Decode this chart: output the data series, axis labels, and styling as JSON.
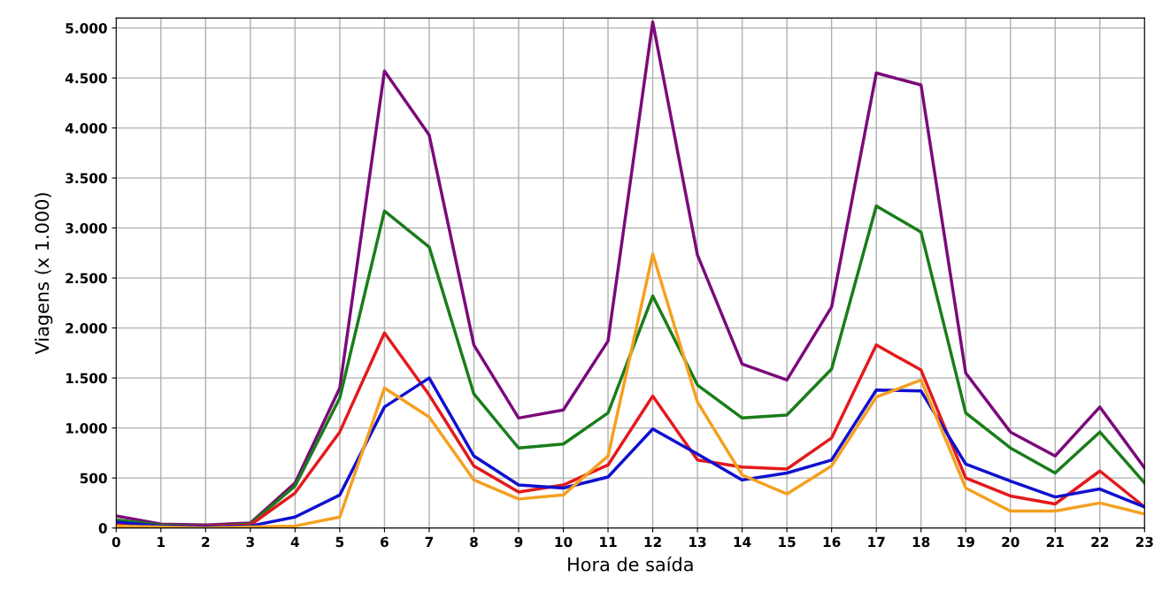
{
  "chart_data": {
    "type": "line",
    "xlabel": "Hora de saída",
    "ylabel": "Viagens (x 1.000)",
    "x": [
      0,
      1,
      2,
      3,
      4,
      5,
      6,
      7,
      8,
      9,
      10,
      11,
      12,
      13,
      14,
      15,
      16,
      17,
      18,
      19,
      20,
      21,
      22,
      23
    ],
    "xlim": [
      0,
      23
    ],
    "xticks": [
      0,
      1,
      2,
      3,
      4,
      5,
      6,
      7,
      8,
      9,
      10,
      11,
      12,
      13,
      14,
      15,
      16,
      17,
      18,
      19,
      20,
      21,
      22,
      23
    ],
    "ylim": [
      0,
      5100
    ],
    "yticks": [
      0,
      500,
      {
        "value": 1000,
        "label": "1.000"
      },
      {
        "value": 1500,
        "label": "1.500"
      },
      {
        "value": 2000,
        "label": "2.000"
      },
      {
        "value": 2500,
        "label": "2.500"
      },
      {
        "value": 3000,
        "label": "3.000"
      },
      {
        "value": 3500,
        "label": "3.500"
      },
      {
        "value": 4000,
        "label": "4.000"
      },
      {
        "value": 4500,
        "label": "4.500"
      },
      {
        "value": 5000,
        "label": "5.000"
      }
    ],
    "grid": true,
    "line_style": "solid",
    "series": [
      {
        "color": "#7b0a7b",
        "values": [
          120,
          40,
          30,
          50,
          450,
          1400,
          4570,
          3930,
          1830,
          1100,
          1180,
          1870,
          5060,
          2730,
          1640,
          1480,
          2210,
          4550,
          4430,
          1550,
          960,
          720,
          1210,
          600
        ]
      },
      {
        "color": "#1a7d1a",
        "values": [
          80,
          30,
          20,
          40,
          420,
          1300,
          3170,
          2810,
          1340,
          800,
          840,
          1150,
          2320,
          1430,
          1100,
          1130,
          1590,
          3220,
          2960,
          1150,
          800,
          550,
          960,
          450
        ]
      },
      {
        "color": "#e31a1c",
        "values": [
          40,
          20,
          20,
          30,
          350,
          960,
          1950,
          1330,
          620,
          360,
          430,
          630,
          1320,
          680,
          610,
          590,
          900,
          1830,
          1580,
          500,
          320,
          240,
          570,
          210
        ]
      },
      {
        "color": "#1010d0",
        "values": [
          60,
          20,
          10,
          20,
          110,
          330,
          1210,
          1500,
          720,
          430,
          400,
          510,
          990,
          740,
          480,
          550,
          680,
          1380,
          1370,
          640,
          470,
          310,
          390,
          210
        ]
      },
      {
        "color": "#f5a020",
        "values": [
          20,
          10,
          0,
          10,
          20,
          110,
          1400,
          1110,
          480,
          290,
          330,
          720,
          2740,
          1260,
          530,
          340,
          620,
          1310,
          1480,
          400,
          170,
          170,
          250,
          140
        ]
      }
    ]
  }
}
